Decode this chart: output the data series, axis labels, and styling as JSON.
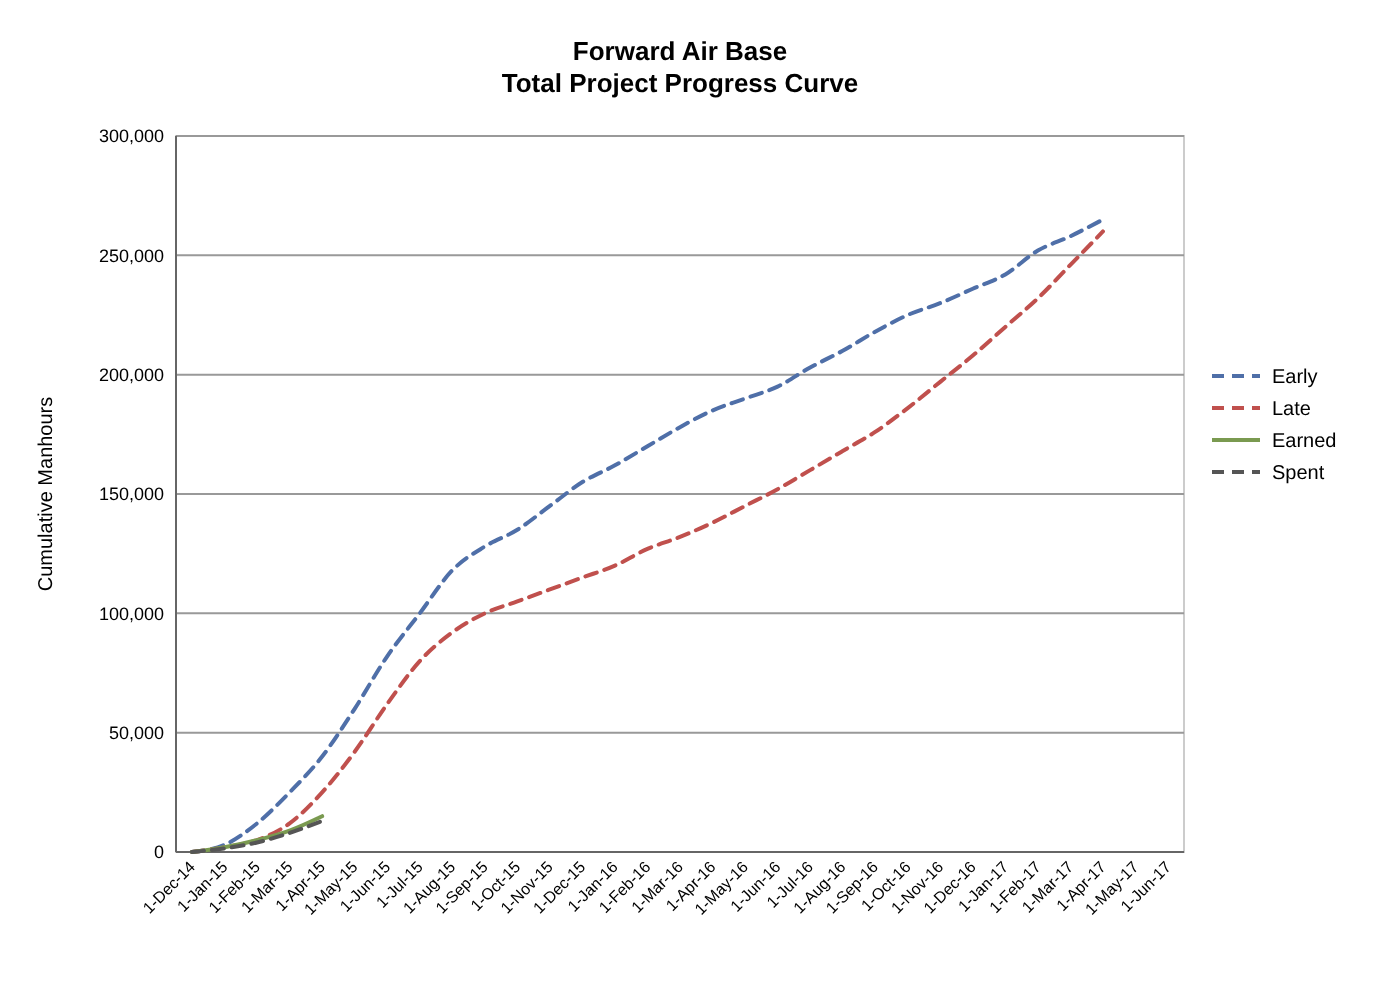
{
  "chart_data": {
    "type": "line",
    "title": "Forward Air Base\nTotal Project Progress Curve",
    "ylabel": "Cumulative Manhours",
    "categories": [
      "1-Dec-14",
      "1-Jan-15",
      "1-Feb-15",
      "1-Mar-15",
      "1-Apr-15",
      "1-May-15",
      "1-Jun-15",
      "1-Jul-15",
      "1-Aug-15",
      "1-Sep-15",
      "1-Oct-15",
      "1-Nov-15",
      "1-Dec-15",
      "1-Jan-16",
      "1-Feb-16",
      "1-Mar-16",
      "1-Apr-16",
      "1-May-16",
      "1-Jun-16",
      "1-Jul-16",
      "1-Aug-16",
      "1-Sep-16",
      "1-Oct-16",
      "1-Nov-16",
      "1-Dec-16",
      "1-Jan-17",
      "1-Feb-17",
      "1-Mar-17",
      "1-Apr-17",
      "1-May-17",
      "1-Jun-17"
    ],
    "series": [
      {
        "name": "Early",
        "color": "#4f6fa8",
        "line_style": "dashed",
        "values": [
          0,
          3000,
          12000,
          25000,
          40000,
          60000,
          82000,
          100000,
          118000,
          128000,
          135000,
          145000,
          155000,
          162000,
          170000,
          178000,
          185000,
          190000,
          195000,
          203000,
          210000,
          218000,
          225000,
          230000,
          236000,
          242000,
          252000,
          258000,
          265000,
          null,
          null
        ]
      },
      {
        "name": "Late",
        "color": "#c0504d",
        "line_style": "dashed",
        "values": [
          0,
          2000,
          5000,
          12000,
          25000,
          42000,
          62000,
          80000,
          92000,
          100000,
          105000,
          110000,
          115000,
          120000,
          127000,
          132000,
          138000,
          145000,
          152000,
          160000,
          168000,
          176000,
          186000,
          197000,
          208000,
          220000,
          232000,
          246000,
          260000,
          null,
          null
        ]
      },
      {
        "name": "Earned",
        "color": "#7a9a50",
        "line_style": "solid",
        "values": [
          0,
          2000,
          5000,
          9000,
          15000,
          null,
          null,
          null,
          null,
          null,
          null,
          null,
          null,
          null,
          null,
          null,
          null,
          null,
          null,
          null,
          null,
          null,
          null,
          null,
          null,
          null,
          null,
          null,
          null,
          null,
          null
        ]
      },
      {
        "name": "Spent",
        "color": "#555555",
        "line_style": "dashed",
        "values": [
          0,
          1500,
          4000,
          8000,
          13000,
          null,
          null,
          null,
          null,
          null,
          null,
          null,
          null,
          null,
          null,
          null,
          null,
          null,
          null,
          null,
          null,
          null,
          null,
          null,
          null,
          null,
          null,
          null,
          null,
          null,
          null
        ]
      }
    ],
    "ylim": [
      0,
      300000
    ],
    "yticks": [
      {
        "value": 0,
        "label": "0"
      },
      {
        "value": 50000,
        "label": "50,000"
      },
      {
        "value": 100000,
        "label": "100,000"
      },
      {
        "value": 150000,
        "label": "150,000"
      },
      {
        "value": 200000,
        "label": "200,000"
      },
      {
        "value": 250000,
        "label": "250,000"
      },
      {
        "value": 300000,
        "label": "300,000"
      }
    ],
    "grid": "y",
    "legend": "right",
    "marker": "none"
  }
}
